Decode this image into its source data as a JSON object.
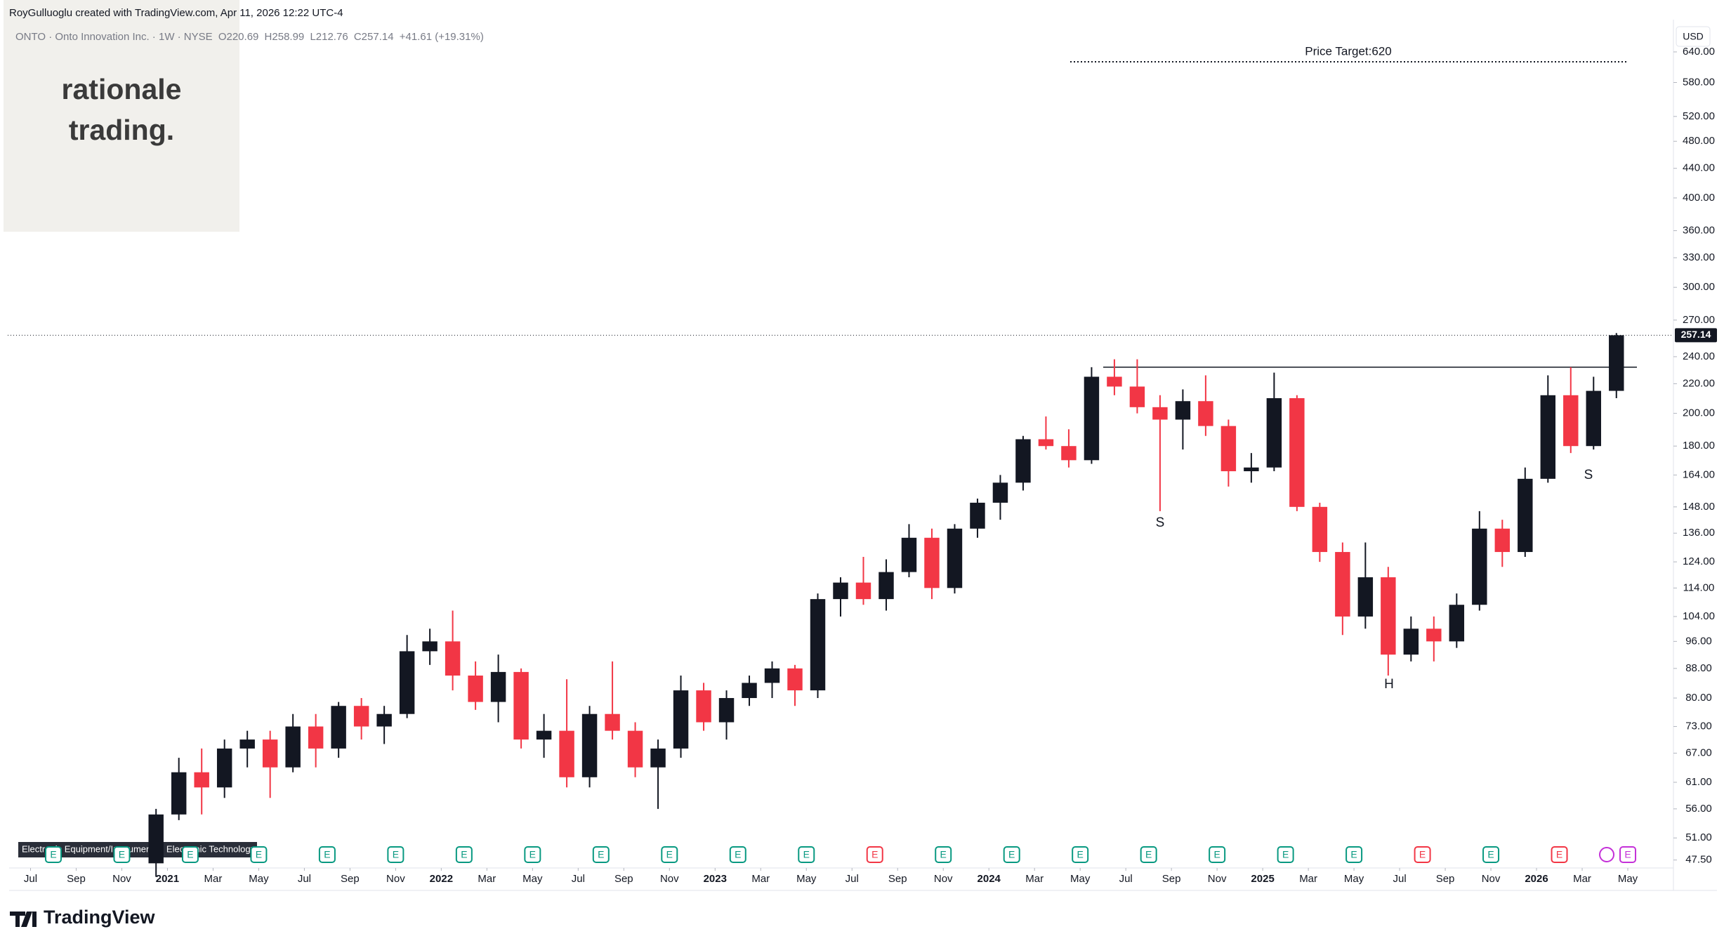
{
  "header": {
    "credit": "RoyGulluoglu created with TradingView.com, Apr 11, 2026 12:22 UTC-4",
    "symbol": "ONTO · Onto Innovation Inc. · 1W · NYSE",
    "ohlc": [
      "O220.69",
      "H258.99",
      "L212.76",
      "C257.14"
    ],
    "change": "+41.61 (+19.31%)"
  },
  "logo": {
    "line1": "rationale",
    "line2": "trading."
  },
  "footer": {
    "brand": "TradingView",
    "sector": "Electronic Equipment/Instruments · Electronic Technology"
  },
  "chart_data": {
    "type": "candlestick",
    "currency": "USD",
    "log_scale": true,
    "up_color": "#131722",
    "down_color": "#f23645",
    "x": [
      "2020-12",
      "2021-01",
      "2021-02",
      "2021-03",
      "2021-04",
      "2021-05",
      "2021-06",
      "2021-07",
      "2021-08",
      "2021-09",
      "2021-10",
      "2021-11",
      "2021-12",
      "2022-01",
      "2022-02",
      "2022-03",
      "2022-04",
      "2022-05",
      "2022-06",
      "2022-07",
      "2022-08",
      "2022-09",
      "2022-10",
      "2022-11",
      "2022-12",
      "2023-01",
      "2023-02",
      "2023-03",
      "2023-04",
      "2023-05",
      "2023-06",
      "2023-07",
      "2023-08",
      "2023-09",
      "2023-10",
      "2023-11",
      "2023-12",
      "2024-01",
      "2024-02",
      "2024-03",
      "2024-04",
      "2024-05",
      "2024-06",
      "2024-07",
      "2024-08",
      "2024-09",
      "2024-10",
      "2024-11",
      "2024-12",
      "2025-01",
      "2025-02",
      "2025-03",
      "2025-04",
      "2025-05",
      "2025-06",
      "2025-07",
      "2025-08",
      "2025-09",
      "2025-10",
      "2025-11",
      "2025-12",
      "2026-01",
      "2026-02",
      "2026-03",
      "2026-04"
    ],
    "open": [
      47,
      55,
      63,
      60,
      68,
      70,
      64,
      73,
      68,
      78,
      73,
      76,
      93,
      96,
      86,
      79,
      87,
      70,
      72,
      62,
      76,
      72,
      64,
      68,
      82,
      74,
      80,
      84,
      88,
      82,
      110,
      116,
      110,
      120,
      134,
      114,
      138,
      150,
      160,
      184,
      180,
      172,
      225,
      218,
      204,
      196,
      208,
      192,
      166,
      168,
      210,
      148,
      128,
      104,
      118,
      92,
      100,
      96,
      108,
      138,
      128,
      162,
      212,
      180,
      215
    ],
    "high": [
      56,
      66,
      68,
      70,
      72,
      72,
      76,
      76,
      79,
      80,
      78,
      98,
      100,
      106,
      90,
      92,
      88,
      76,
      85,
      78,
      90,
      74,
      70,
      86,
      84,
      82,
      86,
      90,
      89,
      112,
      118,
      126,
      125,
      140,
      138,
      140,
      152,
      164,
      186,
      198,
      190,
      232,
      238,
      238,
      212,
      216,
      226,
      196,
      176,
      228,
      212,
      150,
      132,
      132,
      122,
      104,
      104,
      112,
      146,
      142,
      168,
      226,
      232,
      225,
      258.99
    ],
    "low": [
      45,
      54,
      55,
      58,
      64,
      58,
      63,
      64,
      66,
      70,
      69,
      75,
      89,
      82,
      77,
      74,
      68,
      66,
      60,
      60,
      70,
      62,
      56,
      66,
      72,
      70,
      78,
      80,
      78,
      80,
      104,
      108,
      106,
      118,
      110,
      112,
      134,
      142,
      156,
      178,
      168,
      170,
      212,
      200,
      146,
      178,
      186,
      158,
      160,
      166,
      146,
      124,
      98,
      100,
      86,
      90,
      90,
      94,
      106,
      122,
      126,
      160,
      176,
      178,
      210
    ],
    "close": [
      55,
      63,
      60,
      68,
      70,
      64,
      73,
      68,
      78,
      73,
      76,
      93,
      96,
      86,
      79,
      87,
      70,
      72,
      62,
      76,
      72,
      64,
      68,
      82,
      74,
      80,
      84,
      88,
      82,
      110,
      116,
      110,
      120,
      134,
      114,
      138,
      150,
      160,
      184,
      180,
      172,
      225,
      218,
      204,
      196,
      208,
      192,
      166,
      168,
      210,
      148,
      128,
      104,
      118,
      92,
      100,
      96,
      108,
      138,
      128,
      162,
      212,
      180,
      215,
      257.14
    ],
    "xlim": [
      "2020-06",
      "2026-07"
    ],
    "xticks": [
      {
        "value": "2020-07",
        "label": "Jul"
      },
      {
        "value": "2020-09",
        "label": "Sep"
      },
      {
        "value": "2020-11",
        "label": "Nov"
      },
      {
        "value": "2021-01",
        "label": "2021"
      },
      {
        "value": "2021-03",
        "label": "Mar"
      },
      {
        "value": "2021-05",
        "label": "May"
      },
      {
        "value": "2021-07",
        "label": "Jul"
      },
      {
        "value": "2021-09",
        "label": "Sep"
      },
      {
        "value": "2021-11",
        "label": "Nov"
      },
      {
        "value": "2022-01",
        "label": "2022"
      },
      {
        "value": "2022-03",
        "label": "Mar"
      },
      {
        "value": "2022-05",
        "label": "May"
      },
      {
        "value": "2022-07",
        "label": "Jul"
      },
      {
        "value": "2022-09",
        "label": "Sep"
      },
      {
        "value": "2022-11",
        "label": "Nov"
      },
      {
        "value": "2023-01",
        "label": "2023"
      },
      {
        "value": "2023-03",
        "label": "Mar"
      },
      {
        "value": "2023-05",
        "label": "May"
      },
      {
        "value": "2023-07",
        "label": "Jul"
      },
      {
        "value": "2023-09",
        "label": "Sep"
      },
      {
        "value": "2023-11",
        "label": "Nov"
      },
      {
        "value": "2024-01",
        "label": "2024"
      },
      {
        "value": "2024-03",
        "label": "Mar"
      },
      {
        "value": "2024-05",
        "label": "May"
      },
      {
        "value": "2024-07",
        "label": "Jul"
      },
      {
        "value": "2024-09",
        "label": "Sep"
      },
      {
        "value": "2024-11",
        "label": "Nov"
      },
      {
        "value": "2025-01",
        "label": "2025"
      },
      {
        "value": "2025-03",
        "label": "Mar"
      },
      {
        "value": "2025-05",
        "label": "May"
      },
      {
        "value": "2025-07",
        "label": "Jul"
      },
      {
        "value": "2025-09",
        "label": "Sep"
      },
      {
        "value": "2025-11",
        "label": "Nov"
      },
      {
        "value": "2026-01",
        "label": "2026"
      },
      {
        "value": "2026-03",
        "label": "Mar"
      },
      {
        "value": "2026-05",
        "label": "May"
      }
    ],
    "ylim": [
      46.3,
      710
    ],
    "yticks": [
      {
        "value": 47.5,
        "label": "47.50"
      },
      {
        "value": 51,
        "label": "51.00"
      },
      {
        "value": 56,
        "label": "56.00"
      },
      {
        "value": 61,
        "label": "61.00"
      },
      {
        "value": 67,
        "label": "67.00"
      },
      {
        "value": 73,
        "label": "73.00"
      },
      {
        "value": 80,
        "label": "80.00"
      },
      {
        "value": 88,
        "label": "88.00"
      },
      {
        "value": 96,
        "label": "96.00"
      },
      {
        "value": 104,
        "label": "104.00"
      },
      {
        "value": 114,
        "label": "114.00"
      },
      {
        "value": 124,
        "label": "124.00"
      },
      {
        "value": 136,
        "label": "136.00"
      },
      {
        "value": 148,
        "label": "148.00"
      },
      {
        "value": 164,
        "label": "164.00"
      },
      {
        "value": 180,
        "label": "180.00"
      },
      {
        "value": 200,
        "label": "200.00"
      },
      {
        "value": 220,
        "label": "220.00"
      },
      {
        "value": 240,
        "label": "240.00"
      },
      {
        "value": 270,
        "label": "270.00"
      },
      {
        "value": 300,
        "label": "300.00"
      },
      {
        "value": 330,
        "label": "330.00"
      },
      {
        "value": 360,
        "label": "360.00"
      },
      {
        "value": 400,
        "label": "400.00"
      },
      {
        "value": 440,
        "label": "440.00"
      },
      {
        "value": 480,
        "label": "480.00"
      },
      {
        "value": 520,
        "label": "520.00"
      },
      {
        "value": 580,
        "label": "580.00"
      },
      {
        "value": 640,
        "label": "640.00"
      }
    ],
    "last_price": 257.14,
    "resistance": 232,
    "price_target": {
      "value": 620,
      "label": "Price Target:620"
    },
    "annotations": [
      "S",
      "H",
      "S"
    ],
    "earnings_label": "E",
    "earnings": [
      {
        "x": "2020-08",
        "color": "#089981"
      },
      {
        "x": "2020-11",
        "color": "#089981"
      },
      {
        "x": "2021-02",
        "color": "#089981"
      },
      {
        "x": "2021-05",
        "color": "#089981"
      },
      {
        "x": "2021-08",
        "color": "#089981"
      },
      {
        "x": "2021-11",
        "color": "#089981"
      },
      {
        "x": "2022-02",
        "color": "#089981"
      },
      {
        "x": "2022-05",
        "color": "#089981"
      },
      {
        "x": "2022-08",
        "color": "#089981"
      },
      {
        "x": "2022-11",
        "color": "#089981"
      },
      {
        "x": "2023-02",
        "color": "#089981"
      },
      {
        "x": "2023-05",
        "color": "#089981"
      },
      {
        "x": "2023-08",
        "color": "#f23645"
      },
      {
        "x": "2023-11",
        "color": "#089981"
      },
      {
        "x": "2024-02",
        "color": "#089981"
      },
      {
        "x": "2024-05",
        "color": "#089981"
      },
      {
        "x": "2024-08",
        "color": "#089981"
      },
      {
        "x": "2024-11",
        "color": "#089981"
      },
      {
        "x": "2025-02",
        "color": "#089981"
      },
      {
        "x": "2025-05",
        "color": "#089981"
      },
      {
        "x": "2025-08",
        "color": "#f23645"
      },
      {
        "x": "2025-11",
        "color": "#089981"
      },
      {
        "x": "2026-02",
        "color": "#f23645"
      },
      {
        "x": "2026-05",
        "color": "#c430d8"
      }
    ]
  }
}
